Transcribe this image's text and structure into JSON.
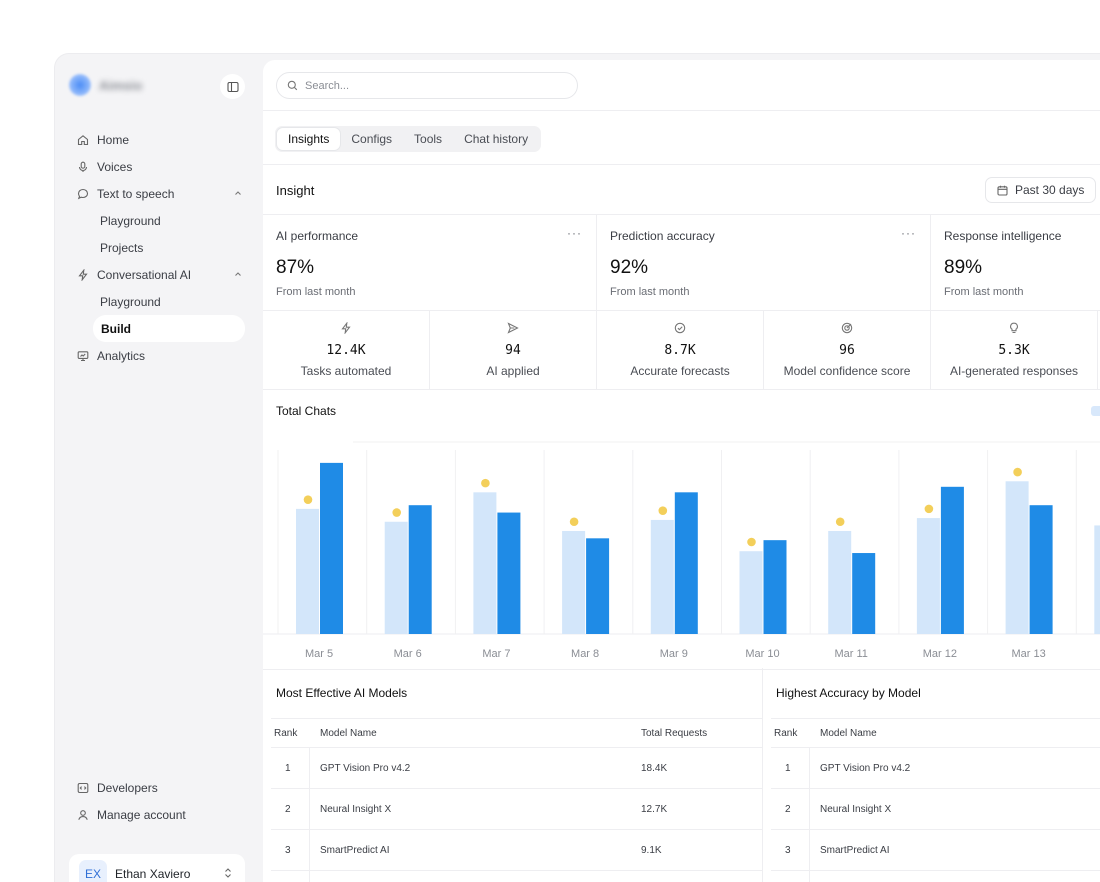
{
  "sidebar": {
    "brand": {
      "name": "Aimsio"
    },
    "nav": [
      {
        "label": "Home",
        "icon": "home-icon"
      },
      {
        "label": "Voices",
        "icon": "microphone-icon"
      },
      {
        "label": "Text to speech",
        "icon": "chat-bubble-icon",
        "expanded": true
      },
      {
        "label": "Playground",
        "sub": true
      },
      {
        "label": "Projects",
        "sub": true
      },
      {
        "label": "Conversational AI",
        "icon": "lightning-icon",
        "expanded": true
      },
      {
        "label": "Playground",
        "sub": true
      },
      {
        "label": "Build",
        "sub": true,
        "active": true
      },
      {
        "label": "Analytics",
        "icon": "monitor-icon"
      }
    ],
    "bottom": [
      {
        "label": "Developers",
        "icon": "code-icon"
      },
      {
        "label": "Manage account",
        "icon": "user-icon"
      }
    ],
    "user": {
      "initials": "EX",
      "name": "Ethan Xaviero"
    }
  },
  "header": {
    "search_placeholder": "Search...",
    "tabs": [
      "Insights",
      "Configs",
      "Tools",
      "Chat history"
    ],
    "active_tab": "Insights"
  },
  "insight": {
    "title": "Insight",
    "date_range": "Past 30 days",
    "kpis": [
      {
        "label": "AI performance",
        "value": "87%",
        "sub": "From last month"
      },
      {
        "label": "Prediction accuracy",
        "value": "92%",
        "sub": "From last month"
      },
      {
        "label": "Response intelligence",
        "value": "89%",
        "sub": "From last month"
      }
    ],
    "stats": [
      {
        "value": "12.4K",
        "label": "Tasks automated",
        "icon": "lightning-icon"
      },
      {
        "value": "94",
        "label": "AI applied",
        "icon": "send-icon"
      },
      {
        "value": "8.7K",
        "label": "Accurate forecasts",
        "icon": "check-circle-icon"
      },
      {
        "value": "96",
        "label": "Model confidence score",
        "icon": "target-icon"
      },
      {
        "value": "5.3K",
        "label": "AI-generated responses",
        "icon": "lightbulb-icon"
      }
    ]
  },
  "chart_title": "Total Chats",
  "chart_data": {
    "type": "bar",
    "title": "Total Chats",
    "categories": [
      "Mar 5",
      "Mar 6",
      "Mar 7",
      "Mar 8",
      "Mar 9",
      "Mar 10",
      "Mar 11",
      "Mar 12",
      "Mar 13"
    ],
    "series": [
      {
        "values": [
          68,
          61,
          77,
          56,
          62,
          45,
          56,
          63,
          83
        ],
        "color": "#d3e6fa"
      },
      {
        "values": [
          93,
          70,
          66,
          52,
          77,
          51,
          44,
          80,
          70
        ],
        "color": "#1f8be6"
      }
    ],
    "markers": [
      73,
      66,
      82,
      61,
      67,
      50,
      61,
      68,
      88
    ],
    "marker_color": "#f3cf5a",
    "ylim": [
      0,
      100
    ],
    "grid": true
  },
  "tables": [
    {
      "title": "Most Effective AI Models",
      "columns": [
        "Rank",
        "Model Name",
        "Total Requests"
      ],
      "rows": [
        [
          "1",
          "GPT Vision Pro v4.2",
          "18.4K"
        ],
        [
          "2",
          "Neural Insight X",
          "12.7K"
        ],
        [
          "3",
          "SmartPredict AI",
          "9.1K"
        ]
      ]
    },
    {
      "title": "Highest Accuracy by Model",
      "columns": [
        "Rank",
        "Model Name"
      ],
      "rows": [
        [
          "1",
          "GPT Vision Pro v4.2"
        ],
        [
          "2",
          "Neural Insight X"
        ],
        [
          "3",
          "SmartPredict AI"
        ]
      ]
    }
  ]
}
